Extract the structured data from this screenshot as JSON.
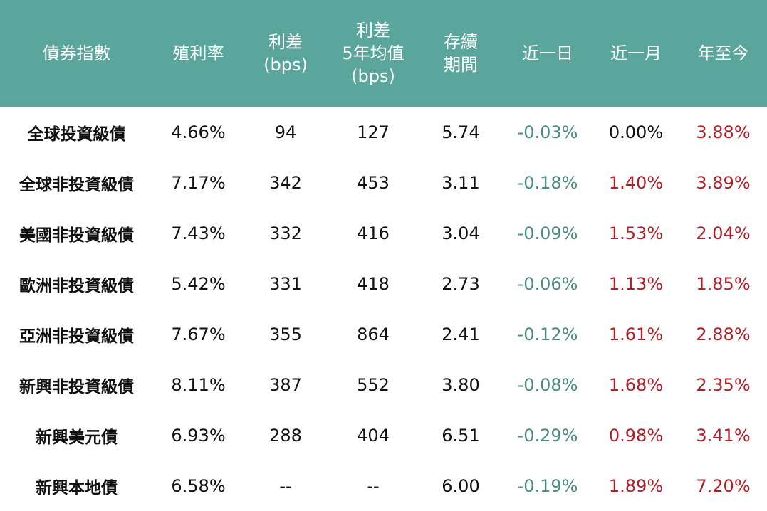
{
  "chart_data": {
    "type": "table",
    "colors": {
      "header_bg": "#5ba69c",
      "header_text": "#ffffff",
      "negative": "#4a8c82",
      "positive": "#b21e28",
      "neutral": "#111111"
    },
    "columns": [
      "債券指數",
      "殖利率",
      "利差\n(bps)",
      "利差\n5年均值\n(bps)",
      "存續\n期間",
      "近一日",
      "近一月",
      "年至今"
    ],
    "rows": [
      {
        "name": "全球投資級債",
        "yield": "4.66%",
        "spread": "94",
        "spread_5y": "127",
        "duration": "5.74",
        "d1": "-0.03%",
        "m1": "0.00%",
        "ytd": "3.88%"
      },
      {
        "name": "全球非投資級債",
        "yield": "7.17%",
        "spread": "342",
        "spread_5y": "453",
        "duration": "3.11",
        "d1": "-0.18%",
        "m1": "1.40%",
        "ytd": "3.89%"
      },
      {
        "name": "美國非投資級債",
        "yield": "7.43%",
        "spread": "332",
        "spread_5y": "416",
        "duration": "3.04",
        "d1": "-0.09%",
        "m1": "1.53%",
        "ytd": "2.04%"
      },
      {
        "name": "歐洲非投資級債",
        "yield": "5.42%",
        "spread": "331",
        "spread_5y": "418",
        "duration": "2.73",
        "d1": "-0.06%",
        "m1": "1.13%",
        "ytd": "1.85%"
      },
      {
        "name": "亞洲非投資級債",
        "yield": "7.67%",
        "spread": "355",
        "spread_5y": "864",
        "duration": "2.41",
        "d1": "-0.12%",
        "m1": "1.61%",
        "ytd": "2.88%"
      },
      {
        "name": "新興非投資級債",
        "yield": "8.11%",
        "spread": "387",
        "spread_5y": "552",
        "duration": "3.80",
        "d1": "-0.08%",
        "m1": "1.68%",
        "ytd": "2.35%"
      },
      {
        "name": "新興美元債",
        "yield": "6.93%",
        "spread": "288",
        "spread_5y": "404",
        "duration": "6.51",
        "d1": "-0.29%",
        "m1": "0.98%",
        "ytd": "3.41%"
      },
      {
        "name": "新興本地債",
        "yield": "6.58%",
        "spread": "--",
        "spread_5y": "--",
        "duration": "6.00",
        "d1": "-0.19%",
        "m1": "1.89%",
        "ytd": "7.20%"
      }
    ]
  }
}
